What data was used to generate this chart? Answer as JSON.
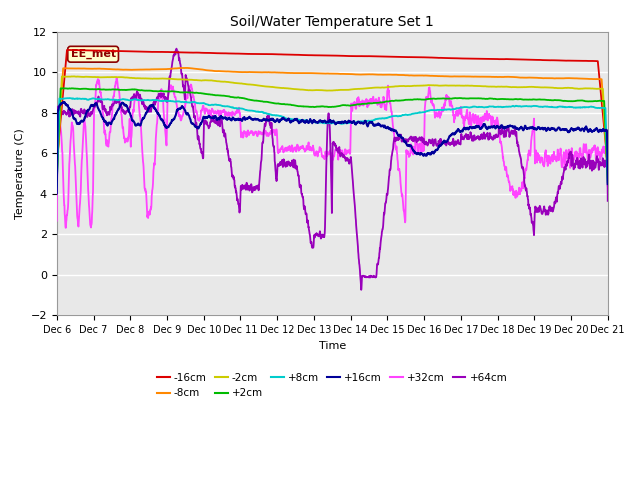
{
  "title": "Soil/Water Temperature Set 1",
  "xlabel": "Time",
  "ylabel": "Temperature (C)",
  "ylim": [
    -2,
    12
  ],
  "yticks": [
    -2,
    0,
    2,
    4,
    6,
    8,
    10,
    12
  ],
  "n_days": 15,
  "xtick_labels": [
    "Dec 6",
    "Dec 7",
    "Dec 8",
    "Dec 9",
    "Dec 10",
    "Dec 11",
    "Dec 12",
    "Dec 13",
    "Dec 14",
    "Dec 15",
    "Dec 16",
    "Dec 17",
    "Dec 18",
    "Dec 19",
    "Dec 20",
    "Dec 21"
  ],
  "annotation_text": "EE_met",
  "annotation_bg": "#ffffcc",
  "annotation_border": "#8B0000",
  "fig_bg": "#ffffff",
  "plot_bg": "#e8e8e8",
  "grid_color": "#ffffff",
  "series": {
    "-16cm": {
      "color": "#dd0000",
      "lw": 1.3
    },
    "-8cm": {
      "color": "#ff8800",
      "lw": 1.3
    },
    "-2cm": {
      "color": "#cccc00",
      "lw": 1.3
    },
    "+2cm": {
      "color": "#00bb00",
      "lw": 1.3
    },
    "+8cm": {
      "color": "#00cccc",
      "lw": 1.3
    },
    "+16cm": {
      "color": "#000099",
      "lw": 1.5
    },
    "+32cm": {
      "color": "#ff44ff",
      "lw": 1.3
    },
    "+64cm": {
      "color": "#9900bb",
      "lw": 1.3
    }
  }
}
